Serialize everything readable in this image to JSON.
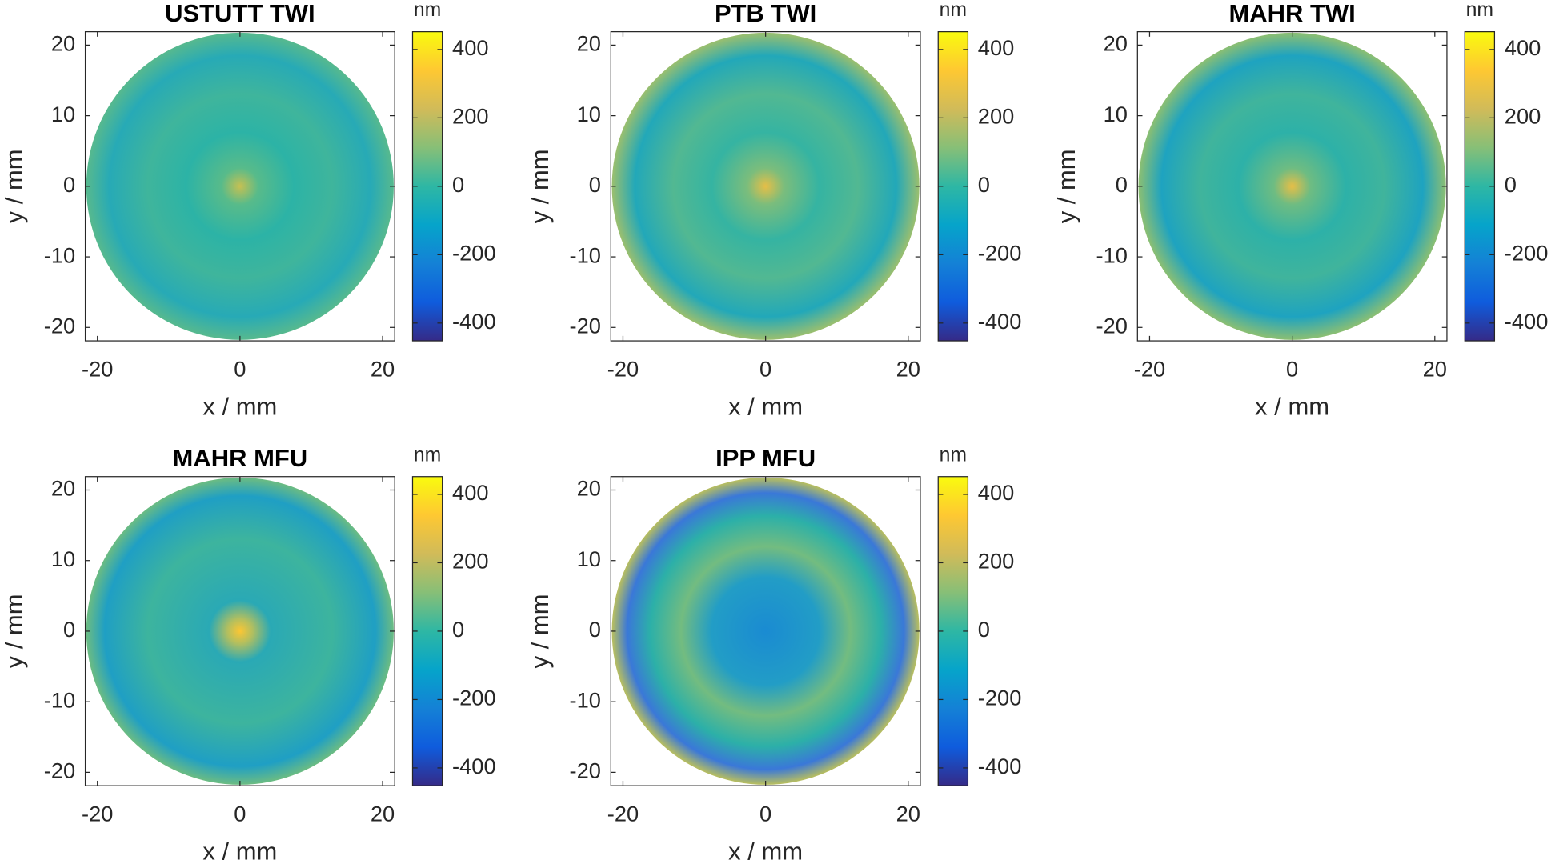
{
  "chart_data": [
    {
      "type": "heatmap",
      "title": "USTUTT TWI",
      "xlabel": "x / mm",
      "ylabel": "y / mm",
      "xlim": [
        -21.7,
        21.7
      ],
      "ylim": [
        -21.9,
        21.9
      ],
      "xticks": [
        -20,
        0,
        20
      ],
      "yticks": [
        -20,
        -10,
        0,
        10,
        20
      ],
      "colorbar_label": "nm",
      "clim": [
        -452,
        452
      ],
      "cticks": [
        -400,
        -200,
        0,
        200,
        400
      ],
      "colormap": [
        "#352a87",
        "#0f5cdd",
        "#1481d6",
        "#06a4ca",
        "#2eb7a4",
        "#87bf77",
        "#d1bb59",
        "#fec832",
        "#f9fb0e"
      ]
    },
    {
      "type": "heatmap",
      "title": "PTB TWI",
      "xlabel": "x / mm",
      "ylabel": "y / mm",
      "xlim": [
        -21.7,
        21.7
      ],
      "ylim": [
        -21.9,
        21.9
      ],
      "xticks": [
        -20,
        0,
        20
      ],
      "yticks": [
        -20,
        -10,
        0,
        10,
        20
      ],
      "colorbar_label": "nm",
      "clim": [
        -452,
        452
      ],
      "cticks": [
        -400,
        -200,
        0,
        200,
        400
      ],
      "colormap": [
        "#352a87",
        "#0f5cdd",
        "#1481d6",
        "#06a4ca",
        "#2eb7a4",
        "#87bf77",
        "#d1bb59",
        "#fec832",
        "#f9fb0e"
      ]
    },
    {
      "type": "heatmap",
      "title": "MAHR TWI",
      "xlabel": "x / mm",
      "ylabel": "y / mm",
      "xlim": [
        -21.7,
        21.7
      ],
      "ylim": [
        -21.9,
        21.9
      ],
      "xticks": [
        -20,
        0,
        20
      ],
      "yticks": [
        -20,
        -10,
        0,
        10,
        20
      ],
      "colorbar_label": "nm",
      "clim": [
        -452,
        452
      ],
      "cticks": [
        -400,
        -200,
        0,
        200,
        400
      ],
      "colormap": [
        "#352a87",
        "#0f5cdd",
        "#1481d6",
        "#06a4ca",
        "#2eb7a4",
        "#87bf77",
        "#d1bb59",
        "#fec832",
        "#f9fb0e"
      ]
    },
    {
      "type": "heatmap",
      "title": "MAHR MFU",
      "xlabel": "x / mm",
      "ylabel": "y / mm",
      "xlim": [
        -21.7,
        21.7
      ],
      "ylim": [
        -21.9,
        21.9
      ],
      "xticks": [
        -20,
        0,
        20
      ],
      "yticks": [
        -20,
        -10,
        0,
        10,
        20
      ],
      "colorbar_label": "nm",
      "clim": [
        -452,
        452
      ],
      "cticks": [
        -400,
        -200,
        0,
        200,
        400
      ],
      "colormap": [
        "#352a87",
        "#0f5cdd",
        "#1481d6",
        "#06a4ca",
        "#2eb7a4",
        "#87bf77",
        "#d1bb59",
        "#fec832",
        "#f9fb0e"
      ]
    },
    {
      "type": "heatmap",
      "title": "IPP MFU",
      "xlabel": "x / mm",
      "ylabel": "y / mm",
      "xlim": [
        -21.7,
        21.7
      ],
      "ylim": [
        -21.9,
        21.9
      ],
      "xticks": [
        -20,
        0,
        20
      ],
      "yticks": [
        -20,
        -10,
        0,
        10,
        20
      ],
      "colorbar_label": "nm",
      "clim": [
        -452,
        452
      ],
      "cticks": [
        -400,
        -200,
        0,
        200,
        400
      ],
      "colormap": [
        "#352a87",
        "#0f5cdd",
        "#1481d6",
        "#06a4ca",
        "#2eb7a4",
        "#87bf77",
        "#d1bb59",
        "#fec832",
        "#f9fb0e"
      ]
    }
  ]
}
